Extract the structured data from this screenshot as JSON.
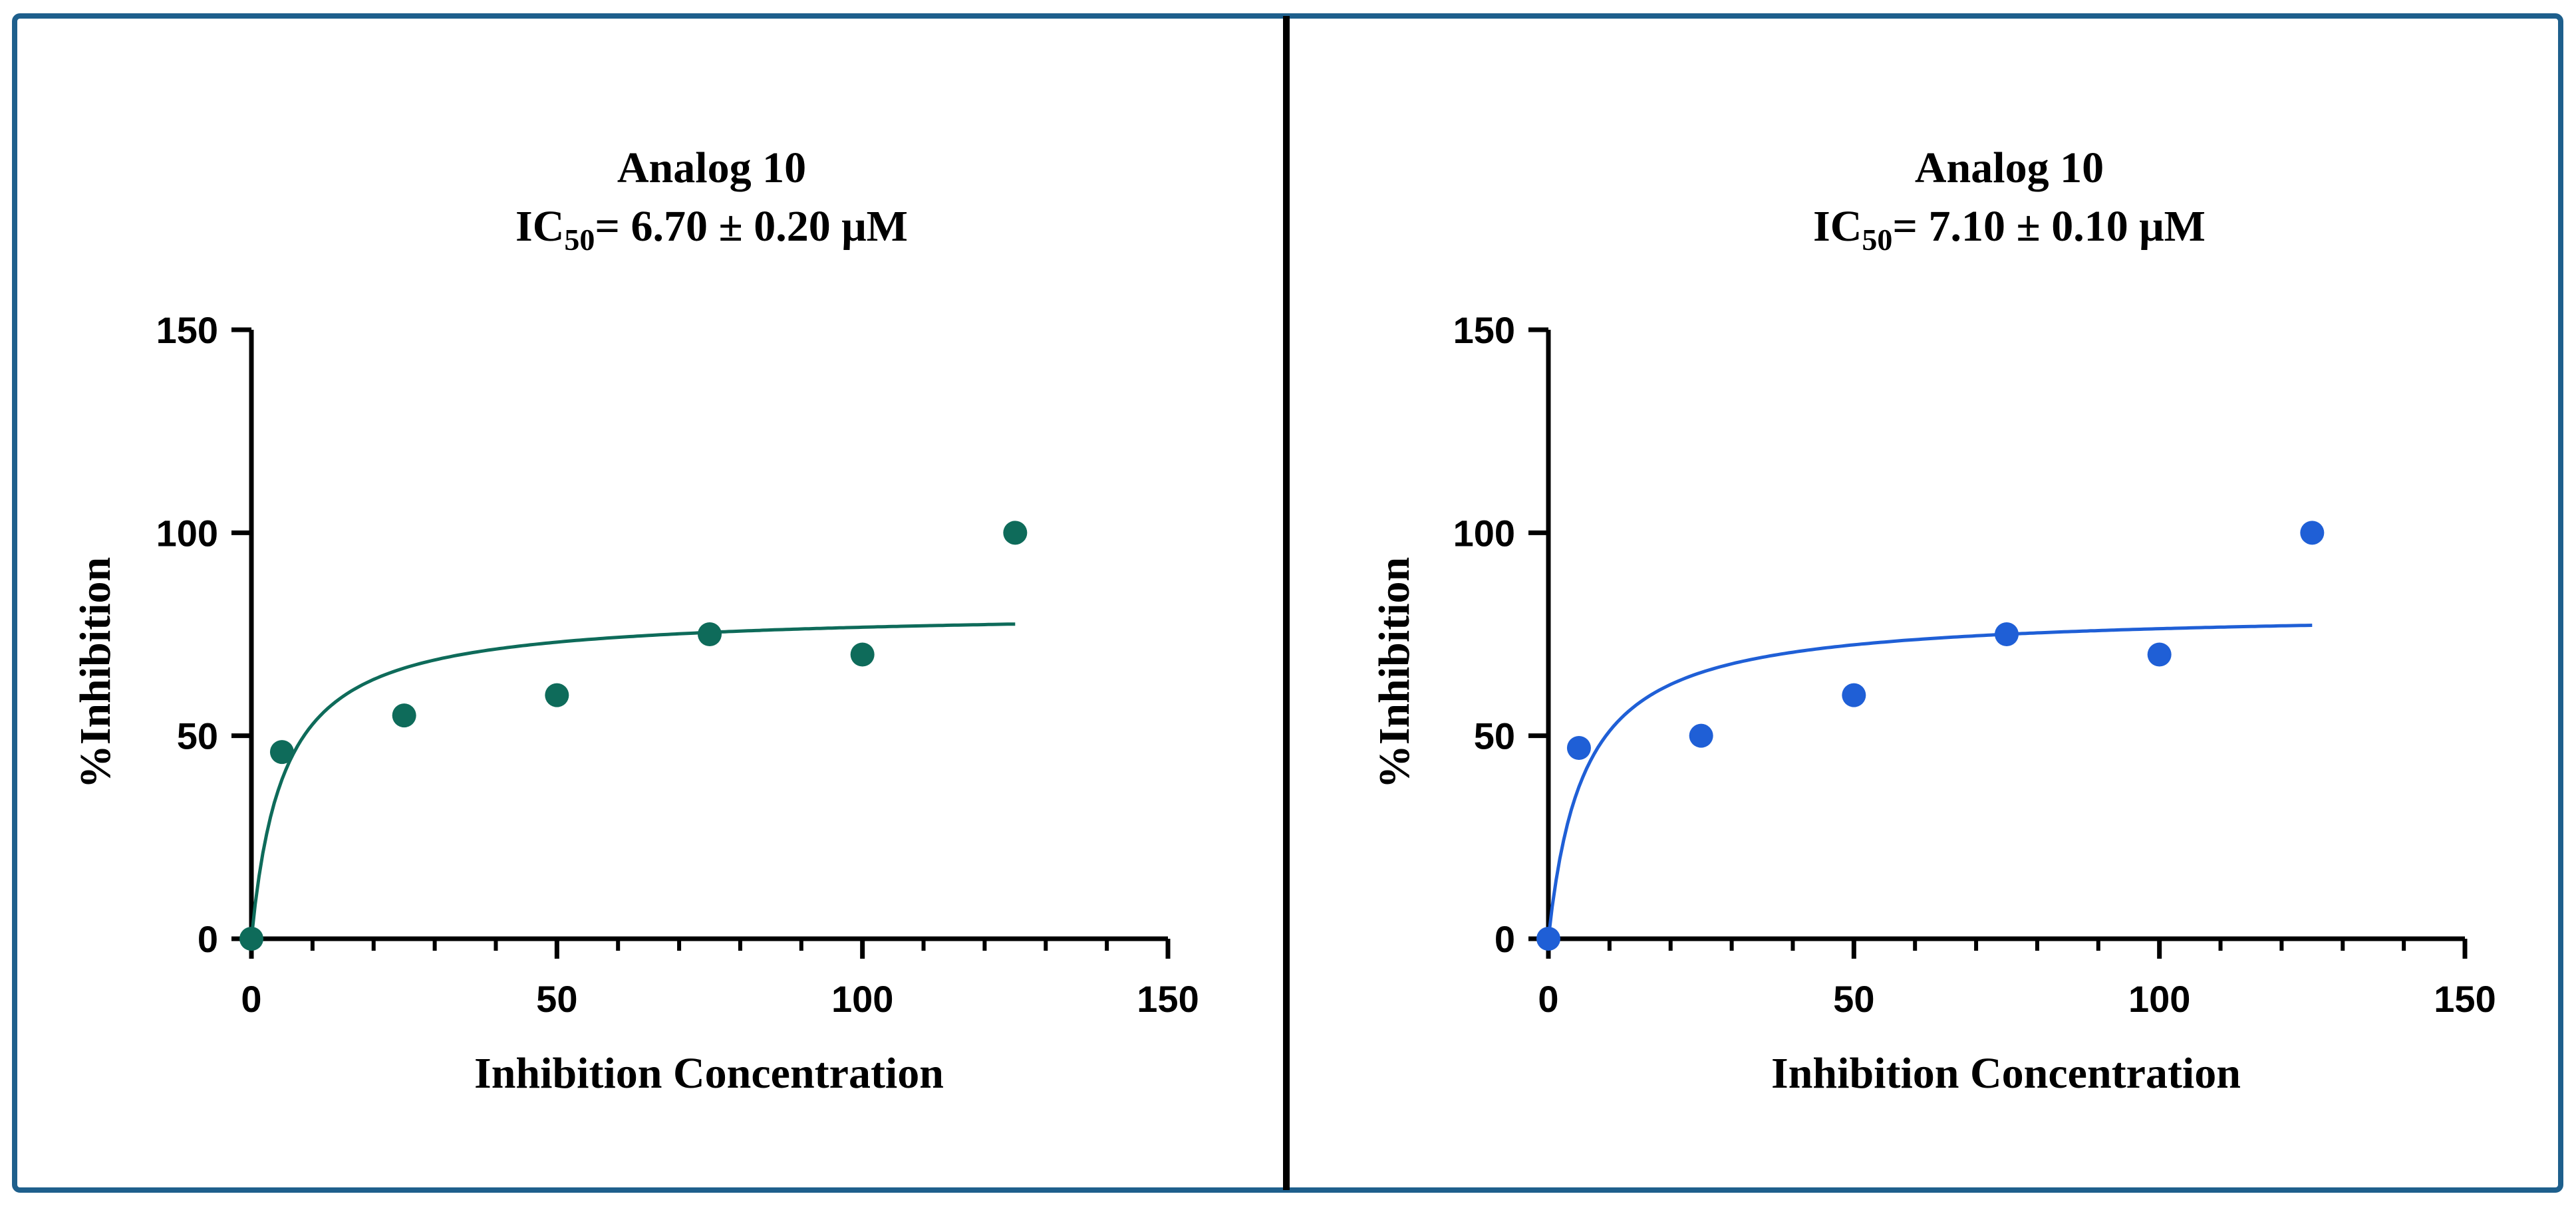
{
  "figure": {
    "frame_color": "#1e5f8c",
    "divider_color": "#000000"
  },
  "chart_data": [
    {
      "type": "scatter",
      "title": "Analog 10",
      "subtitle": {
        "prefix": "IC",
        "subscript": "50",
        "suffix": "= 6.70 ± 0.20 μM"
      },
      "xlabel": "Inhibition Concentration",
      "ylabel": "%Inhibition",
      "xlim": [
        0,
        150
      ],
      "ylim": [
        0,
        150
      ],
      "x_major_ticks": [
        0,
        50,
        100,
        150
      ],
      "x_tick_labels": [
        "0",
        "50",
        "100",
        "150"
      ],
      "x_minor_step": 10,
      "y_major_ticks": [
        0,
        50,
        100,
        150
      ],
      "y_tick_labels": [
        "0",
        "50",
        "100",
        "150"
      ],
      "color": "#0e6b5a",
      "series": [
        {
          "name": "data",
          "x": [
            0,
            5,
            25,
            50,
            75,
            100,
            125
          ],
          "y": [
            0,
            46,
            55,
            60,
            75,
            70,
            100
          ]
        }
      ],
      "fit": {
        "type": "hyperbola",
        "bmax": 80.8,
        "kd": 5.3,
        "x_range": [
          0,
          125
        ]
      },
      "grid": false
    },
    {
      "type": "scatter",
      "title": "Analog 10",
      "subtitle": {
        "prefix": "IC",
        "subscript": "50",
        "suffix": "= 7.10 ± 0.10 μM"
      },
      "xlabel": "Inhibition Concentration",
      "ylabel": "%Inhibition",
      "xlim": [
        0,
        150
      ],
      "ylim": [
        0,
        150
      ],
      "x_major_ticks": [
        0,
        50,
        100,
        150
      ],
      "x_tick_labels": [
        "0",
        "50",
        "100",
        "150"
      ],
      "x_minor_step": 10,
      "y_major_ticks": [
        0,
        50,
        100,
        150
      ],
      "y_tick_labels": [
        "0",
        "50",
        "100",
        "150"
      ],
      "color": "#1f5fd6",
      "series": [
        {
          "name": "data",
          "x": [
            0,
            5,
            25,
            50,
            75,
            100,
            125
          ],
          "y": [
            0,
            47,
            50,
            60,
            75,
            70,
            100
          ]
        }
      ],
      "fit": {
        "type": "hyperbola",
        "bmax": 80.8,
        "kd": 5.8,
        "x_range": [
          0,
          125
        ]
      },
      "grid": false
    }
  ]
}
